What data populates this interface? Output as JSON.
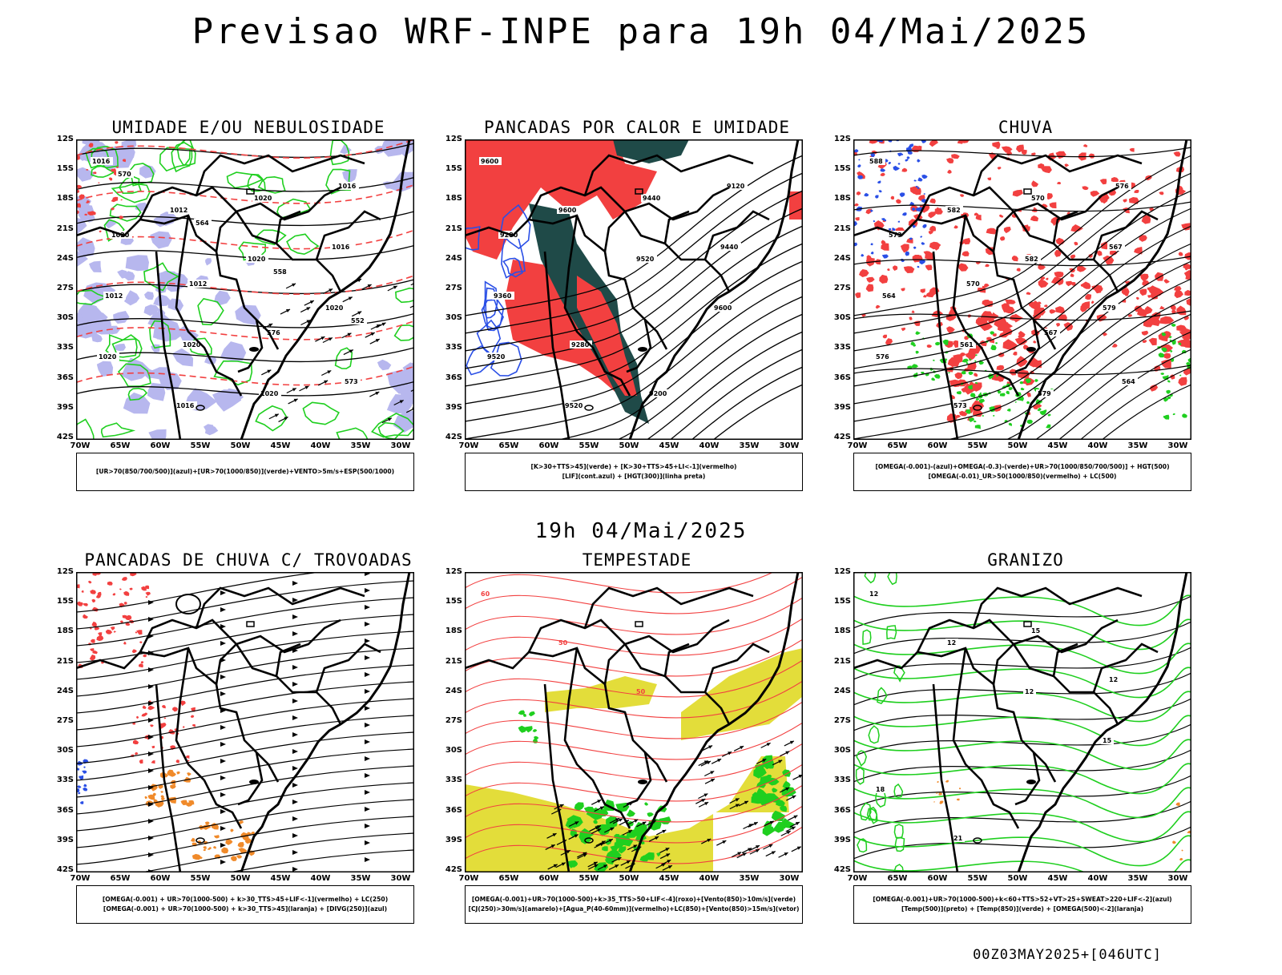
{
  "title": "Previsao WRF-INPE  para 19h 04/Mai/2025",
  "subdate": "19h 04/Mai/2025",
  "footer": "00Z03MAY2025+[046UTC]",
  "axes": {
    "lat_labels": [
      "12S",
      "15S",
      "18S",
      "21S",
      "24S",
      "27S",
      "30S",
      "33S",
      "36S",
      "39S",
      "42S"
    ],
    "lon_labels": [
      "70W",
      "65W",
      "60W",
      "55W",
      "50W",
      "45W",
      "40W",
      "35W",
      "30W"
    ]
  },
  "colors": {
    "green": "#1fcf1f",
    "red": "#f24040",
    "blue": "#2a4fe6",
    "lavender": "#b7b7ee",
    "darkteal": "#1f4a48",
    "yellow": "#e3dd3a",
    "orange": "#f08a2a",
    "black": "#000000"
  },
  "panels": [
    {
      "title": "UMIDADE E/OU NEBULOSIDADE",
      "legend": [
        "[UR>70(850/700/500)](azul)+[UR>70(1000/850)](verde)+VENTO>5m/s+ESP(500/1000)"
      ],
      "labels": [
        "1016",
        "1012",
        "1020",
        "1020",
        "1020",
        "1016",
        "1020",
        "1016",
        "1012",
        "1020",
        "1020",
        "1016",
        "1020",
        "1012",
        "576",
        "573",
        "570",
        "564",
        "558",
        "552"
      ]
    },
    {
      "title": "PANCADAS POR CALOR E UMIDADE",
      "legend": [
        "[K>30+TTS>45](verde) + [K>30+TTS>45+LI<-1](vermelho)",
        "[LIF](cont.azul) + [HGT(300)](linha preta)"
      ],
      "labels": [
        "9600",
        "9600",
        "9520",
        "9600",
        "9520",
        "9520",
        "9440",
        "9440",
        "9360",
        "9280",
        "9200",
        "9120",
        "9280"
      ]
    },
    {
      "title": "CHUVA",
      "legend": [
        "[OMEGA(-0.001)-(azul)+OMEGA(-0.3)-(verde)+UR>70(1000/850/700/500)] + HGT(500)",
        "[OMEGA(-0.01)_UR>50(1000/850)(vermelho) + LC(500)"
      ],
      "labels": [
        "588",
        "582",
        "582",
        "579",
        "576",
        "573",
        "570",
        "567",
        "564",
        "561",
        "579",
        "576",
        "573",
        "570",
        "567",
        "564"
      ]
    },
    {
      "title": "PANCADAS DE CHUVA C/ TROVOADAS",
      "legend": [
        "[OMEGA(-0.001) + UR>70(1000-500) + k>30_TTS>45+LIF<-1](vermelho) + LC(250)",
        "[OMEGA(-0.001) + UR>70(1000-500) + k>30_TTS>45](laranja) + [DIVG(250)](azul)"
      ],
      "labels": []
    },
    {
      "title": "TEMPESTADE",
      "legend": [
        "[OMEGA(-0.001)+UR>70(1000-500)+k>35_TTS>50+LIF<-4](roxo)+[Vento(850)>10m/s](verde)",
        "[CJ(250)>30m/s](amarelo)+[Agua_P(40-60mm)](vermelho)+LC(850)+[Vento(850)>15m/s](vetor)"
      ],
      "labels": [
        "60",
        "50",
        "50"
      ]
    },
    {
      "title": "GRANIZO",
      "legend": [
        "[OMEGA(-0.001)+UR>70(1000-500)+k<60+TTS>52+VT>25+SWEAT>220+LIF<-2](azul)",
        "[Temp(500)](preto) + [Temp(850)](verde) + [OMEGA(500)<-2](laranja)"
      ],
      "labels": [
        "12",
        "12",
        "12",
        "15",
        "18",
        "21",
        "15",
        "12"
      ]
    }
  ]
}
